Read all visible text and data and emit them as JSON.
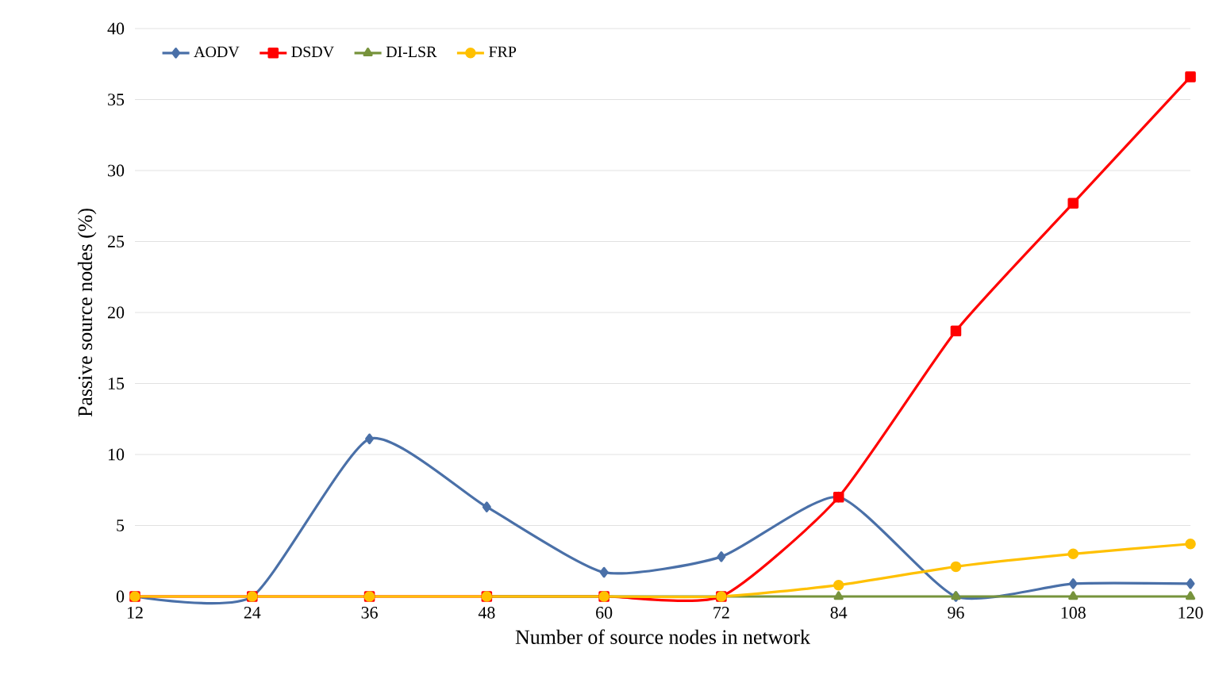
{
  "chart_data": {
    "type": "line",
    "xlabel": "Number of source nodes in network",
    "ylabel": "Passive source nodes (%)",
    "x": [
      12,
      24,
      36,
      48,
      60,
      72,
      84,
      96,
      108,
      120
    ],
    "series": [
      {
        "name": "AODV",
        "color": "#4a70a8",
        "marker": "diamond",
        "values": [
          0,
          0,
          11.1,
          6.3,
          1.7,
          2.8,
          7.0,
          0,
          0.9,
          0.9
        ]
      },
      {
        "name": "DSDV",
        "color": "#ff0000",
        "marker": "square",
        "values": [
          0,
          0,
          0,
          0,
          0,
          0,
          7.0,
          18.7,
          27.7,
          36.6
        ]
      },
      {
        "name": "DI-LSR",
        "color": "#77933c",
        "marker": "triangle",
        "values": [
          null,
          null,
          null,
          0,
          0,
          0,
          0,
          0,
          0,
          0
        ]
      },
      {
        "name": "FRP",
        "color": "#ffc000",
        "marker": "circle",
        "values": [
          0,
          0,
          0,
          0,
          0,
          0,
          0.8,
          2.1,
          3.0,
          3.7
        ]
      }
    ],
    "xlim": [
      12,
      120
    ],
    "xticks": [
      12,
      24,
      36,
      48,
      60,
      72,
      84,
      96,
      108,
      120
    ],
    "ylim": [
      0,
      40
    ],
    "yticks": [
      0,
      5,
      10,
      15,
      20,
      25,
      30,
      35,
      40
    ],
    "grid": "y",
    "legend": "top left"
  }
}
